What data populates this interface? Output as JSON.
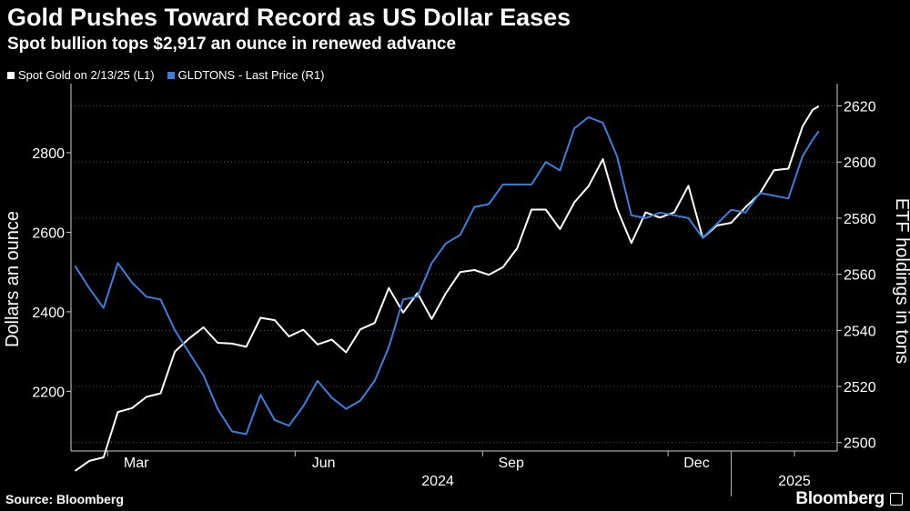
{
  "header": {
    "title": "Gold Pushes Toward Record as US Dollar Eases",
    "subtitle": "Spot bullion tops $2,917 an ounce in renewed advance"
  },
  "footer": {
    "source": "Source: Bloomberg",
    "brand": "Bloomberg"
  },
  "colors": {
    "background": "#000000",
    "series_gold": "#ffffff",
    "series_etf": "#3a7fe0",
    "grid": "#555555"
  },
  "chart_data": {
    "type": "line",
    "x_tick_labels": [
      "Mar",
      "Jun",
      "Sep",
      "Dec",
      "2024",
      "2025"
    ],
    "year_labels": [
      "2024",
      "2025"
    ],
    "y_left": {
      "label": "Dollars an ounce",
      "ticks": [
        "2200",
        "2400",
        "2600",
        "2800"
      ],
      "range": [
        2050,
        2960
      ]
    },
    "y_right": {
      "label": "ETF holdings in tons",
      "ticks": [
        "2500",
        "2520",
        "2540",
        "2560",
        "2580",
        "2600",
        "2620"
      ],
      "range": [
        2497,
        2626
      ]
    },
    "grid": "horizontal dotted",
    "legend_position": "top-left",
    "series": [
      {
        "name": "Spot Gold on 2/13/25 (L1)",
        "axis": "left",
        "color": "#ffffff",
        "points": [
          [
            "2024-02-14",
            2000
          ],
          [
            "2024-02-21",
            2025
          ],
          [
            "2024-02-28",
            2034
          ],
          [
            "2024-03-06",
            2148
          ],
          [
            "2024-03-13",
            2158
          ],
          [
            "2024-03-20",
            2186
          ],
          [
            "2024-03-27",
            2195
          ],
          [
            "2024-04-03",
            2300
          ],
          [
            "2024-04-10",
            2333
          ],
          [
            "2024-04-17",
            2361
          ],
          [
            "2024-04-24",
            2322
          ],
          [
            "2024-05-01",
            2320
          ],
          [
            "2024-05-08",
            2312
          ],
          [
            "2024-05-15",
            2385
          ],
          [
            "2024-05-22",
            2379
          ],
          [
            "2024-05-29",
            2338
          ],
          [
            "2024-06-05",
            2355
          ],
          [
            "2024-06-12",
            2318
          ],
          [
            "2024-06-19",
            2330
          ],
          [
            "2024-06-26",
            2298
          ],
          [
            "2024-07-03",
            2356
          ],
          [
            "2024-07-10",
            2372
          ],
          [
            "2024-07-17",
            2460
          ],
          [
            "2024-07-24",
            2398
          ],
          [
            "2024-07-31",
            2447
          ],
          [
            "2024-08-07",
            2382
          ],
          [
            "2024-08-14",
            2447
          ],
          [
            "2024-08-21",
            2500
          ],
          [
            "2024-08-28",
            2505
          ],
          [
            "2024-09-04",
            2493
          ],
          [
            "2024-09-11",
            2512
          ],
          [
            "2024-09-18",
            2560
          ],
          [
            "2024-09-25",
            2657
          ],
          [
            "2024-10-02",
            2657
          ],
          [
            "2024-10-09",
            2608
          ],
          [
            "2024-10-16",
            2675
          ],
          [
            "2024-10-23",
            2716
          ],
          [
            "2024-10-30",
            2784
          ],
          [
            "2024-11-06",
            2659
          ],
          [
            "2024-11-13",
            2573
          ],
          [
            "2024-11-20",
            2650
          ],
          [
            "2024-11-27",
            2637
          ],
          [
            "2024-12-04",
            2650
          ],
          [
            "2024-12-11",
            2717
          ],
          [
            "2024-12-18",
            2586
          ],
          [
            "2024-12-25",
            2617
          ],
          [
            "2025-01-01",
            2624
          ],
          [
            "2025-01-08",
            2663
          ],
          [
            "2025-01-15",
            2697
          ],
          [
            "2025-01-22",
            2756
          ],
          [
            "2025-01-29",
            2760
          ],
          [
            "2025-02-05",
            2866
          ],
          [
            "2025-02-10",
            2908
          ],
          [
            "2025-02-13",
            2917
          ]
        ]
      },
      {
        "name": "GLDTONS - Last Price (R1)",
        "axis": "right",
        "color": "#3a7fe0",
        "points": [
          [
            "2024-02-14",
            2563
          ],
          [
            "2024-02-21",
            2555
          ],
          [
            "2024-02-28",
            2548
          ],
          [
            "2024-03-06",
            2564
          ],
          [
            "2024-03-13",
            2557
          ],
          [
            "2024-03-20",
            2552
          ],
          [
            "2024-03-27",
            2551
          ],
          [
            "2024-04-03",
            2540
          ],
          [
            "2024-04-10",
            2532
          ],
          [
            "2024-04-17",
            2524
          ],
          [
            "2024-04-24",
            2512
          ],
          [
            "2024-05-01",
            2504
          ],
          [
            "2024-05-08",
            2503
          ],
          [
            "2024-05-15",
            2517
          ],
          [
            "2024-05-22",
            2508
          ],
          [
            "2024-05-29",
            2506
          ],
          [
            "2024-06-05",
            2513
          ],
          [
            "2024-06-12",
            2522
          ],
          [
            "2024-06-19",
            2516
          ],
          [
            "2024-06-26",
            2512
          ],
          [
            "2024-07-03",
            2515
          ],
          [
            "2024-07-10",
            2522
          ],
          [
            "2024-07-17",
            2534
          ],
          [
            "2024-07-24",
            2551
          ],
          [
            "2024-07-31",
            2552
          ],
          [
            "2024-08-07",
            2564
          ],
          [
            "2024-08-14",
            2571
          ],
          [
            "2024-08-21",
            2574
          ],
          [
            "2024-08-28",
            2584
          ],
          [
            "2024-09-04",
            2585
          ],
          [
            "2024-09-11",
            2592
          ],
          [
            "2024-09-18",
            2592
          ],
          [
            "2024-09-25",
            2592
          ],
          [
            "2024-10-02",
            2600
          ],
          [
            "2024-10-09",
            2597
          ],
          [
            "2024-10-16",
            2612
          ],
          [
            "2024-10-23",
            2616
          ],
          [
            "2024-10-30",
            2614
          ],
          [
            "2024-11-06",
            2602
          ],
          [
            "2024-11-13",
            2581
          ],
          [
            "2024-11-20",
            2580
          ],
          [
            "2024-11-27",
            2582
          ],
          [
            "2024-12-04",
            2581
          ],
          [
            "2024-12-11",
            2580
          ],
          [
            "2024-12-18",
            2573
          ],
          [
            "2024-12-25",
            2578
          ],
          [
            "2025-01-01",
            2583
          ],
          [
            "2025-01-08",
            2582
          ],
          [
            "2025-01-15",
            2589
          ],
          [
            "2025-01-22",
            2588
          ],
          [
            "2025-01-29",
            2587
          ],
          [
            "2025-02-05",
            2602
          ],
          [
            "2025-02-10",
            2608
          ],
          [
            "2025-02-13",
            2611
          ]
        ]
      }
    ]
  }
}
